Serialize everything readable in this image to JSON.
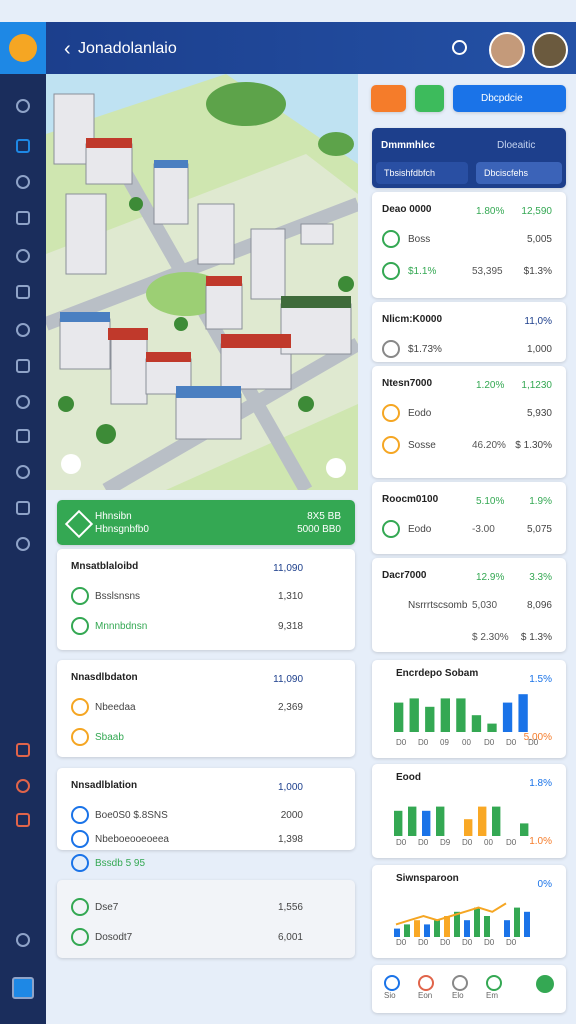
{
  "header": {
    "title": "Jonadolanlaio"
  },
  "actions": {
    "search": "Dbcpdcie"
  },
  "summary": {
    "title": "Dmmmhlcc",
    "note": "Dloeaitic",
    "tabs": [
      "Tbsishfdbfch",
      "Dbciscfehs"
    ]
  },
  "stats": [
    {
      "title": "Deao 0000",
      "a": "1.80%",
      "b": "12,590",
      "rows": [
        [
          "Boss",
          "",
          "5,005"
        ],
        [
          "$1.1%",
          "53,395",
          "$1.3%"
        ]
      ]
    },
    {
      "title": "Nlicm:K0000",
      "a": "",
      "b": "11,0%",
      "rows": [
        [
          "$1.73%",
          "",
          "1,000"
        ]
      ]
    },
    {
      "title": "Ntesn7000",
      "a": "1.20%",
      "b": "1,1230",
      "rows": [
        [
          "Eodo",
          "",
          "5,930"
        ],
        [
          "Sosse",
          "46.20%",
          "$ 1.30%"
        ]
      ]
    },
    {
      "title": "Roocm0100",
      "a": "5.10%",
      "b": "1.9%",
      "rows": [
        [
          "Eodo",
          "-3.00",
          "5,075"
        ]
      ]
    },
    {
      "title": "Dacr7000",
      "a": "12.9%",
      "b": "3.3%",
      "rows": [
        [
          "Nsrrrtscsomb",
          "5,030",
          "8,096"
        ],
        [
          "",
          "$ 2.30%",
          "$ 1.3%"
        ]
      ]
    }
  ],
  "banner": {
    "title": "Hhnsibn",
    "subtitle": "Hbnsgnbfb0",
    "a": "8X5 BB",
    "b": "5000 BB0"
  },
  "panels": [
    {
      "title": "Mnsatblaloibd",
      "value": "11,090",
      "rows": [
        [
          "Bsslsnsns",
          "1,310"
        ],
        [
          "Mnnnbdnsn",
          "9,318"
        ]
      ]
    },
    {
      "title": "Nnasdlbdaton",
      "value": "11,090",
      "rows": [
        [
          "Nbeedaa",
          "2,369"
        ],
        [
          "Sbaab",
          ""
        ]
      ]
    },
    {
      "title": "Nnsadlblation",
      "value": "1,000",
      "rows": [
        [
          "Boe0S0 $.8SNS",
          "2000"
        ],
        [
          "Nbeboeooeoeea",
          "1,398"
        ],
        [
          "Bssdb 5 95",
          ""
        ]
      ]
    },
    {
      "title": "",
      "value": "",
      "rows": [
        [
          "Dse7",
          "1,556"
        ],
        [
          "Dosodt7",
          "6,001"
        ]
      ]
    }
  ],
  "charts": [
    {
      "title": "Encrdepo Sobam",
      "value": "1.5%",
      "side": "5.00%",
      "ylim": [
        0,
        10
      ],
      "bars": [
        7,
        8,
        6,
        8,
        8,
        4,
        2,
        7,
        9
      ],
      "bar_colors": [
        "#34a853",
        "#34a853",
        "#34a853",
        "#34a853",
        "#34a853",
        "#34a853",
        "#34a853",
        "#1a73e8",
        "#1a73e8"
      ],
      "labels": [
        "D0",
        "D0",
        "09",
        "00",
        "D0",
        "D0",
        "D0"
      ]
    },
    {
      "title": "Eood",
      "value": "1.8%",
      "side": "1.0%",
      "ylim": [
        0,
        10
      ],
      "bars": [
        6,
        7,
        6,
        7,
        0,
        4,
        7,
        7,
        0,
        3
      ],
      "bar_colors": [
        "#34a853",
        "#34a853",
        "#1a73e8",
        "#34a853",
        "#34a853",
        "#f9a825",
        "#f9a825",
        "#34a853",
        "#34a853",
        "#34a853"
      ],
      "labels": [
        "D0",
        "D0",
        "D9",
        "D0",
        "00",
        "D0"
      ]
    },
    {
      "title": "Siwnsparoon",
      "value": "0%",
      "side": "",
      "ylim": [
        0,
        10
      ],
      "bars": [
        2,
        3,
        4,
        3,
        4,
        5,
        6,
        4,
        7,
        5,
        0,
        4,
        7,
        6
      ],
      "bar_colors": [
        "#1a73e8",
        "#34a853",
        "#f9a825",
        "#1a73e8",
        "#34a853",
        "#f9a825",
        "#34a853",
        "#1a73e8",
        "#34a853",
        "#34a853",
        "#34a853",
        "#1a73e8",
        "#34a853",
        "#1a73e8"
      ],
      "line": [
        3,
        4,
        5,
        4,
        5,
        6,
        7,
        6,
        8
      ],
      "labels": [
        "D0",
        "D0",
        "D0",
        "D0",
        "D0",
        "D0"
      ]
    }
  ],
  "nav": [
    "Sio",
    "Eon",
    "Elo",
    "Em"
  ]
}
